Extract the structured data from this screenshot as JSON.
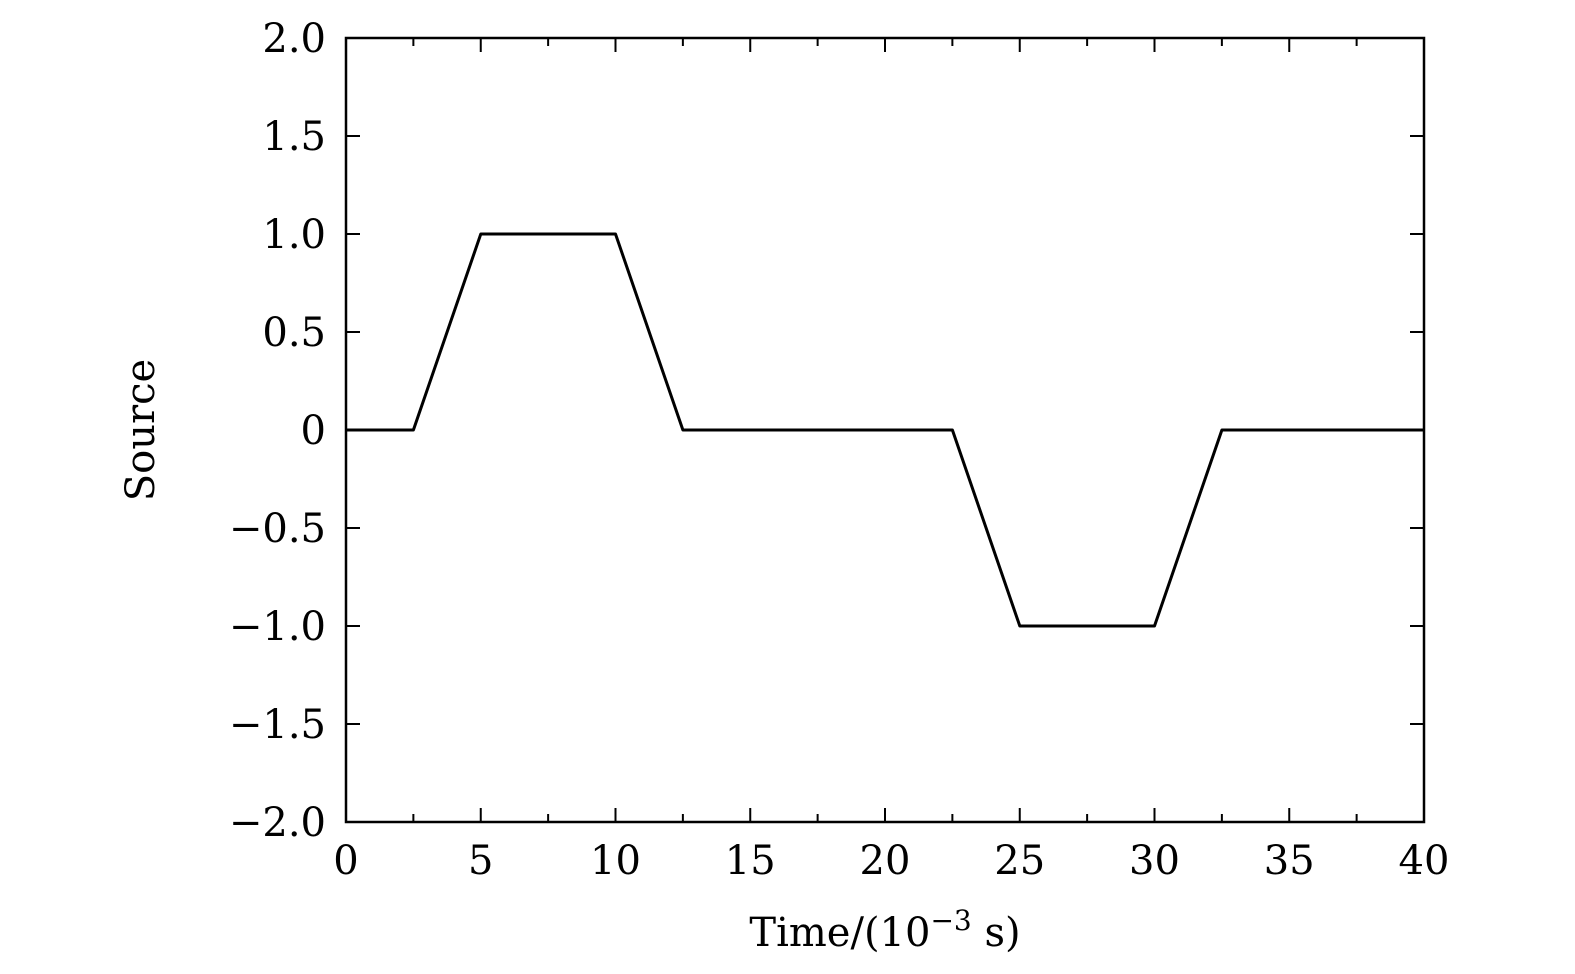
{
  "chart_data": {
    "type": "line",
    "xlabel": "Time/(10",
    "xlabel_exponent": "−3",
    "xlabel_suffix": " s)",
    "ylabel": "Source",
    "xlim": [
      0,
      40
    ],
    "ylim": [
      -2.0,
      2.0
    ],
    "xticks": [
      0,
      5,
      10,
      15,
      20,
      25,
      30,
      35,
      40
    ],
    "xtick_labels": [
      "0",
      "5",
      "10",
      "15",
      "20",
      "25",
      "30",
      "35",
      "40"
    ],
    "x_minor_ticks": [
      2.5,
      7.5,
      12.5,
      17.5,
      22.5,
      27.5,
      32.5,
      37.5
    ],
    "yticks": [
      2.0,
      1.5,
      1.0,
      0.5,
      0,
      -0.5,
      -1.0,
      -1.5,
      -2.0
    ],
    "ytick_labels": [
      "2.0",
      "1.5",
      "1.0",
      "0.5",
      "0",
      "−0.5",
      "−1.0",
      "−1.5",
      "−2.0"
    ],
    "grid": false,
    "series": [
      {
        "color": "#000000",
        "x": [
          0,
          2.5,
          5,
          10,
          12.5,
          22.5,
          25,
          30,
          32.5,
          40
        ],
        "y": [
          0,
          0,
          1.0,
          1.0,
          0,
          0,
          -1.0,
          -1.0,
          0,
          0
        ]
      }
    ]
  }
}
